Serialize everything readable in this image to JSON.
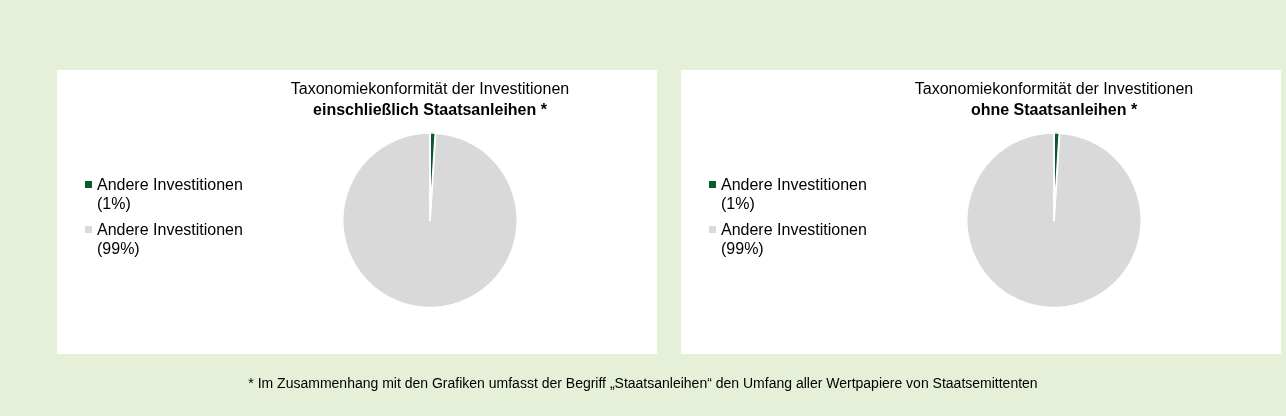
{
  "chart_data": [
    {
      "type": "pie",
      "title": "Taxonomiekonformität der Investitionen",
      "subtitle": "einschließlich Staatsanleihen *",
      "categories": [
        "Andere Investitionen (1%)",
        "Andere Investitionen (99%)"
      ],
      "values": [
        1,
        99
      ],
      "colors": [
        "#0b5a2a",
        "#d9d9d9"
      ],
      "legend": "left",
      "annotations": [
        "* Im Zusammenhang mit den Grafiken umfasst der Begriff „Staatsanleihen“ den Umfang aller Wertpapiere von Staatsemittenten"
      ]
    },
    {
      "type": "pie",
      "title": "Taxonomiekonformität der Investitionen",
      "subtitle": "ohne Staatsanleihen *",
      "categories": [
        "Andere Investitionen (1%)",
        "Andere Investitionen (99%)"
      ],
      "values": [
        1,
        99
      ],
      "colors": [
        "#0b5a2a",
        "#d9d9d9"
      ],
      "legend": "left"
    }
  ]
}
